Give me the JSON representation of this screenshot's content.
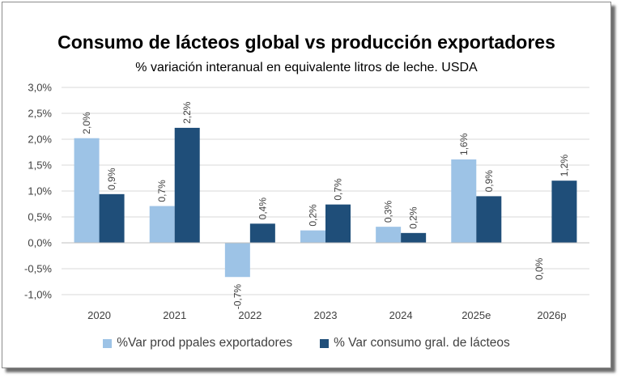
{
  "chart_data": {
    "type": "bar",
    "title": "Consumo de lácteos global vs producción exportadores",
    "subtitle": "% variación interanual en equivalente litros de leche. USDA",
    "categories": [
      "2020",
      "2021",
      "2022",
      "2023",
      "2024",
      "2025e",
      "2026p"
    ],
    "series": [
      {
        "name": "%Var prod ppales exportadores",
        "color": "#9dc3e6",
        "values": [
          2.02,
          0.71,
          -0.66,
          0.24,
          0.31,
          1.61,
          0.0
        ],
        "labels": [
          "2,0%",
          "0,7%",
          "-0,7%",
          "0,2%",
          "0,3%",
          "1,6%",
          "0,0%"
        ]
      },
      {
        "name": "% Var consumo gral. de lácteos",
        "color": "#1f4e79",
        "values": [
          0.94,
          2.22,
          0.37,
          0.74,
          0.19,
          0.9,
          1.2
        ],
        "labels": [
          "0,9%",
          "2,2%",
          "0,4%",
          "0,7%",
          "0,2%",
          "0,9%",
          "1,2%"
        ]
      }
    ],
    "ylim": [
      -1.0,
      3.0
    ],
    "yticks": [
      3.0,
      2.5,
      2.0,
      1.5,
      1.0,
      0.5,
      0.0,
      -0.5,
      -1.0
    ],
    "ytick_labels": [
      "3,0%",
      "2,5%",
      "2,0%",
      "1,5%",
      "1,0%",
      "0,5%",
      "0,0%",
      "-0,5%",
      "-1,0%"
    ],
    "grid": true,
    "legend_position": "bottom"
  }
}
